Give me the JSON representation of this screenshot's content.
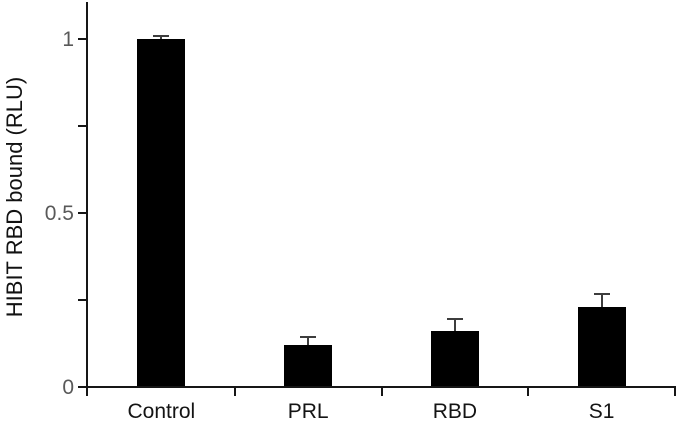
{
  "chart_data": {
    "type": "bar",
    "title": "",
    "ylabel": "HIBIT RBD bound (RLU)",
    "xlabel": "",
    "categories": [
      "Control",
      "PRL",
      "RBD",
      "S1"
    ],
    "values": [
      1.0,
      0.12,
      0.16,
      0.23
    ],
    "error_bars": [
      0.01,
      0.025,
      0.036,
      0.036
    ],
    "ylim": [
      0,
      1.1
    ],
    "yticks": [
      0,
      0.25,
      0.5,
      0.75,
      1
    ],
    "ytick_labels": [
      "0",
      "",
      "0.5",
      "",
      "1"
    ],
    "grid": false,
    "legend": "none",
    "colors": {
      "bar": "#000000",
      "axis": "#161616",
      "error_bar": "#3d3d3d",
      "tick_label": "#595959",
      "category_label": "#141414",
      "background": "#ffffff"
    }
  }
}
